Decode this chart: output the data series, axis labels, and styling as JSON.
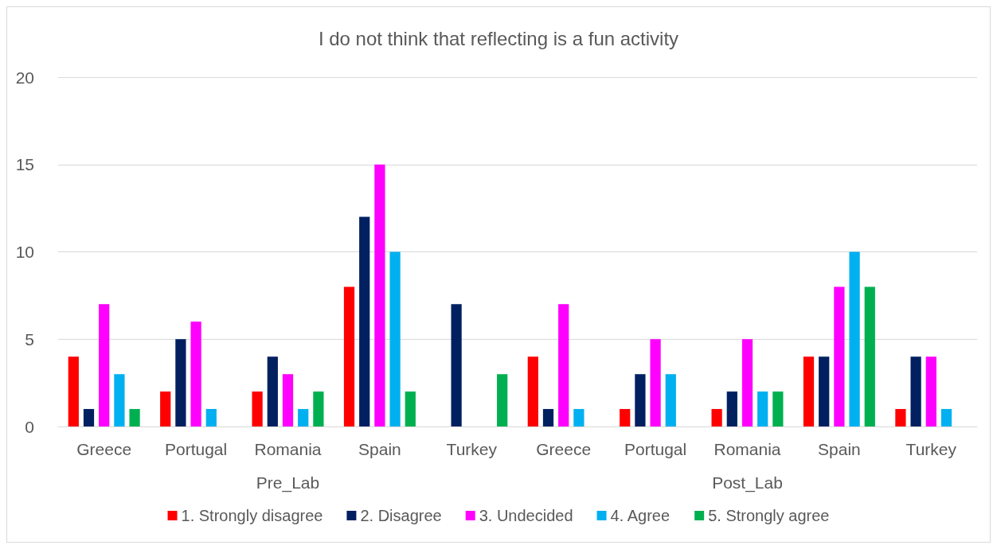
{
  "chart_data": {
    "type": "bar",
    "title": "I do not think that reflecting is a fun activity",
    "categories": [
      "Greece",
      "Portugal",
      "Romania",
      "Spain",
      "Turkey",
      "Greece",
      "Portugal",
      "Romania",
      "Spain",
      "Turkey"
    ],
    "annotations": [
      "Pre_Lab",
      "Post_Lab"
    ],
    "series": [
      {
        "name": "1. Strongly disagree",
        "color": "#ff0000",
        "values": [
          4,
          2,
          2,
          8,
          0,
          4,
          1,
          1,
          4,
          1
        ]
      },
      {
        "name": "2. Disagree",
        "color": "#002060",
        "values": [
          1,
          5,
          4,
          12,
          7,
          1,
          3,
          2,
          4,
          4
        ]
      },
      {
        "name": "3. Undecided",
        "color": "#ff00ff",
        "values": [
          7,
          6,
          3,
          15,
          0,
          7,
          5,
          5,
          8,
          4
        ]
      },
      {
        "name": "4. Agree",
        "color": "#00b0f0",
        "values": [
          3,
          1,
          1,
          10,
          0,
          1,
          3,
          2,
          10,
          1
        ]
      },
      {
        "name": "5. Strongly agree",
        "color": "#00b050",
        "values": [
          1,
          0,
          2,
          2,
          3,
          0,
          0,
          2,
          8,
          0
        ]
      }
    ],
    "ylim": [
      0,
      20
    ],
    "yticks": [
      0,
      5,
      10,
      15,
      20
    ],
    "grid": "y",
    "legend": "bottom"
  }
}
